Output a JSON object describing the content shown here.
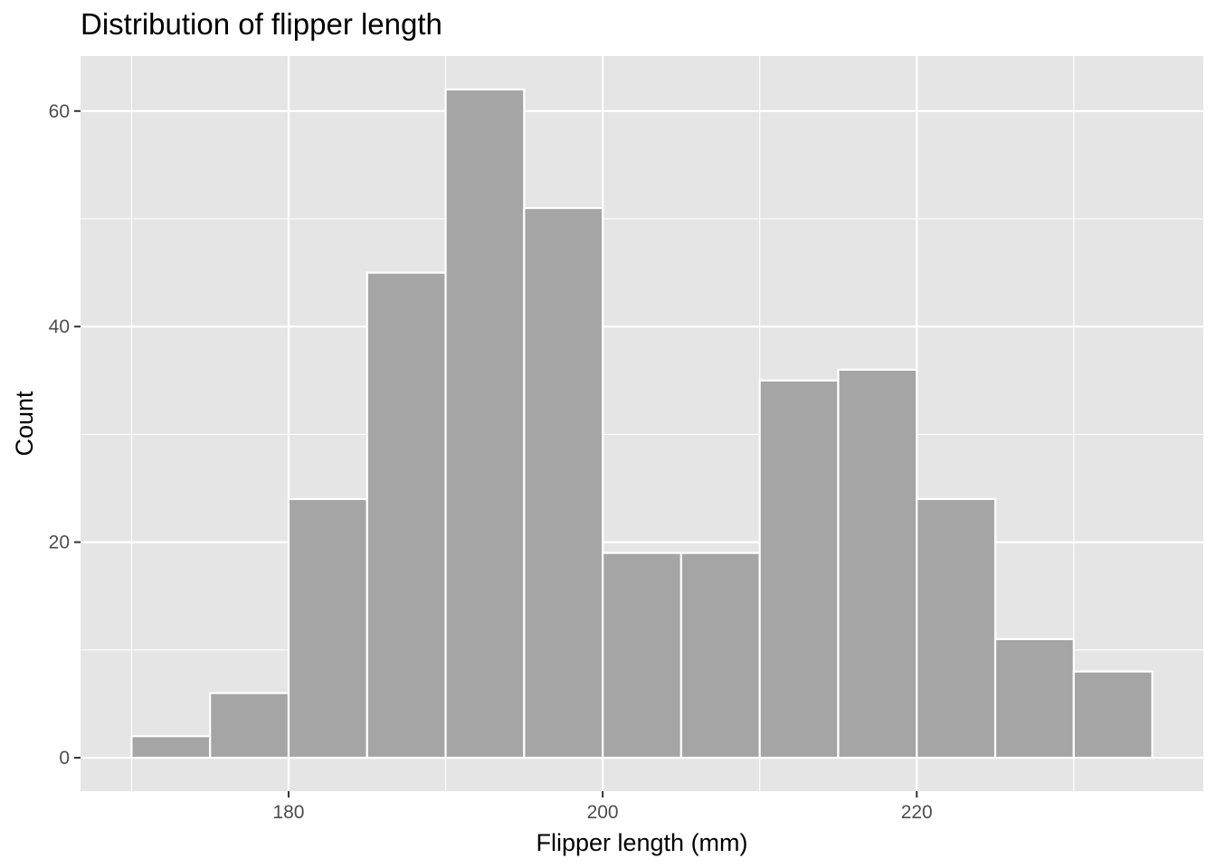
{
  "chart_data": {
    "type": "bar",
    "title": "Distribution of flipper length",
    "xlabel": "Flipper length (mm)",
    "ylabel": "Count",
    "bins": [
      {
        "x_start": 170,
        "x_end": 175,
        "count": 2
      },
      {
        "x_start": 175,
        "x_end": 180,
        "count": 6
      },
      {
        "x_start": 180,
        "x_end": 185,
        "count": 24
      },
      {
        "x_start": 185,
        "x_end": 190,
        "count": 45
      },
      {
        "x_start": 190,
        "x_end": 195,
        "count": 62
      },
      {
        "x_start": 195,
        "x_end": 200,
        "count": 51
      },
      {
        "x_start": 200,
        "x_end": 205,
        "count": 19
      },
      {
        "x_start": 205,
        "x_end": 210,
        "count": 19
      },
      {
        "x_start": 210,
        "x_end": 215,
        "count": 35
      },
      {
        "x_start": 215,
        "x_end": 220,
        "count": 36
      },
      {
        "x_start": 220,
        "x_end": 225,
        "count": 24
      },
      {
        "x_start": 225,
        "x_end": 230,
        "count": 11
      },
      {
        "x_start": 230,
        "x_end": 235,
        "count": 8
      }
    ],
    "xlim": [
      166.75,
      238.25
    ],
    "ylim": [
      -3.1,
      65.1
    ],
    "x_major_ticks": [
      180,
      200,
      220
    ],
    "x_minor_ticks": [
      170,
      190,
      210,
      230
    ],
    "y_major_ticks": [
      0,
      20,
      40,
      60
    ],
    "y_minor_ticks": [
      10,
      30,
      50
    ],
    "grid": true,
    "legend": "none",
    "colors": {
      "panel_background": "#e5e5e5",
      "grid_line": "#ffffff",
      "bar_fill": "#a5a5a5",
      "bar_outline": "#ffffff",
      "tick_label": "#4d4d4d",
      "tick_mark": "#333333"
    }
  }
}
